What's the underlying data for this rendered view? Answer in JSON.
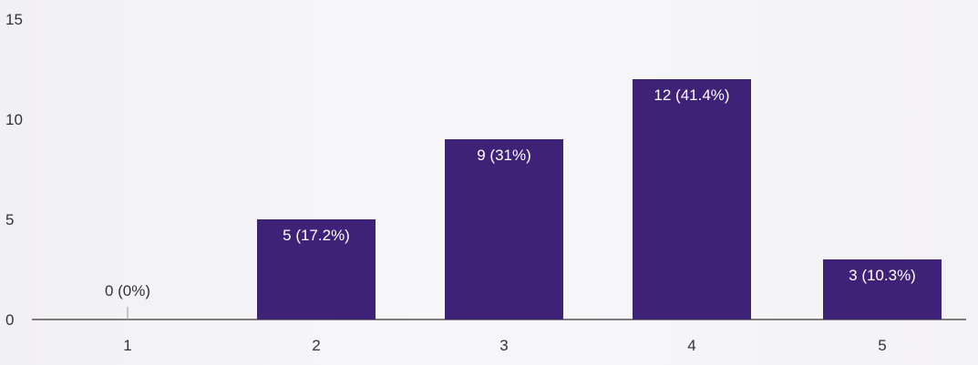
{
  "chart_data": {
    "type": "bar",
    "categories": [
      "1",
      "2",
      "3",
      "4",
      "5"
    ],
    "values": [
      0,
      5,
      9,
      12,
      3
    ],
    "data_labels": [
      "0 (0%)",
      "5 (17.2%)",
      "9 (31%)",
      "12 (41.4%)",
      "3 (10.3%)"
    ],
    "y_ticks": [
      "0",
      "5",
      "10",
      "15"
    ],
    "ylim": [
      0,
      15
    ],
    "title": "",
    "xlabel": "",
    "ylabel": "",
    "grid": false,
    "bar_color": "#3d2277",
    "axis_color": "#555555"
  }
}
